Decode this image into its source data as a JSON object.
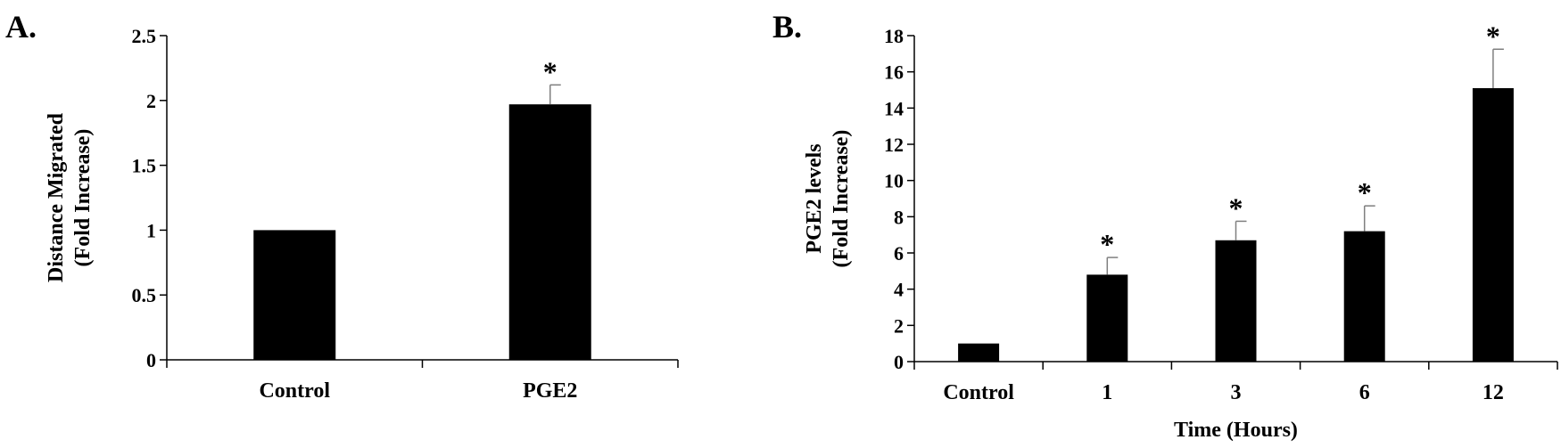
{
  "chart_data": [
    {
      "panel": "A.",
      "type": "bar",
      "categories": [
        "Control",
        "PGE2"
      ],
      "values": [
        1.0,
        1.97
      ],
      "errors": [
        0.0,
        0.15
      ],
      "significance": [
        "",
        "*"
      ],
      "ylabel_lines": [
        "Distance Migrated",
        "(Fold Increase)"
      ],
      "xlabel": "",
      "ylim": [
        0,
        2.5
      ],
      "yticks": [
        0,
        0.5,
        1,
        1.5,
        2,
        2.5
      ],
      "ytick_labels": [
        "0",
        "0.5",
        "1",
        "1.5",
        "2",
        "2.5"
      ],
      "grid": false,
      "legend": "none",
      "bar_color": "#000000",
      "error_color": "#7f7f7f"
    },
    {
      "panel": "B.",
      "type": "bar",
      "categories": [
        "Control",
        "1",
        "3",
        "6",
        "12"
      ],
      "values": [
        1.0,
        4.8,
        6.7,
        7.2,
        15.1
      ],
      "errors": [
        0.0,
        0.95,
        1.05,
        1.4,
        2.15
      ],
      "significance": [
        "",
        "*",
        "*",
        "*",
        "*"
      ],
      "ylabel_lines": [
        "PGE2 levels",
        "(Fold Increase)"
      ],
      "xlabel": "Time (Hours)",
      "ylim": [
        0,
        18
      ],
      "yticks": [
        0,
        2,
        4,
        6,
        8,
        10,
        12,
        14,
        16,
        18
      ],
      "ytick_labels": [
        "0",
        "2",
        "4",
        "6",
        "8",
        "10",
        "12",
        "14",
        "16",
        "18"
      ],
      "grid": false,
      "legend": "none",
      "bar_color": "#000000",
      "error_color": "#7f7f7f"
    }
  ]
}
